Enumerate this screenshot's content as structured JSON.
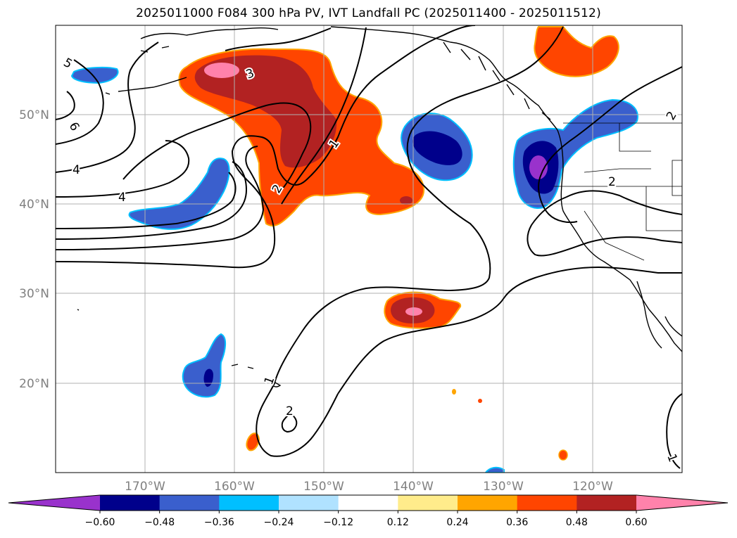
{
  "title": "2025011000 F084 300 hPa PV, IVT Landfall PC (2025011400 - 2025011512)",
  "map": {
    "projection": "equirectangular",
    "lon_range": [
      -180,
      -110
    ],
    "lat_range": [
      10,
      60
    ],
    "grid": true,
    "lat_ticks": [
      {
        "value": 20,
        "label": "20°N"
      },
      {
        "value": 30,
        "label": "30°N"
      },
      {
        "value": 40,
        "label": "40°N"
      },
      {
        "value": 50,
        "label": "50°N"
      }
    ],
    "lon_ticks": [
      {
        "value": -170,
        "label": "170°W"
      },
      {
        "value": -160,
        "label": "160°W"
      },
      {
        "value": -150,
        "label": "150°W"
      },
      {
        "value": -140,
        "label": "140°W"
      },
      {
        "value": -130,
        "label": "130°W"
      },
      {
        "value": -120,
        "label": "120°W"
      }
    ],
    "contour_labels": [
      "5",
      "6",
      "4",
      "4",
      "3",
      "2",
      "1",
      "2",
      "2",
      "1",
      "1",
      "2"
    ]
  },
  "colorbar": {
    "extend": "both",
    "colors": [
      "#9932cc",
      "#00008b",
      "#3a5fcd",
      "#00bfff",
      "#b0e2ff",
      "#ffffff",
      "#ffec8b",
      "#ffa500",
      "#ff4500",
      "#b22222",
      "#ff82ab"
    ],
    "tick_labels": [
      "−0.60",
      "−0.48",
      "−0.36",
      "−0.24",
      "−0.12",
      "0.12",
      "0.24",
      "0.36",
      "0.48",
      "0.60"
    ]
  }
}
